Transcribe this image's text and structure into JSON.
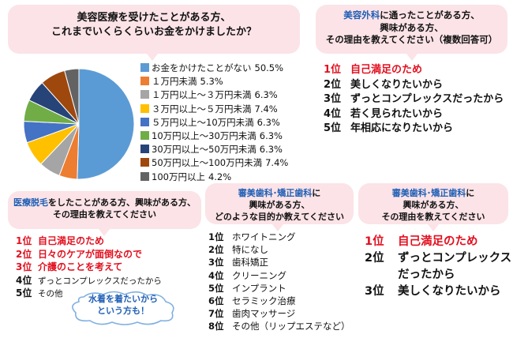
{
  "q1": {
    "line1": "美容医療を受けたことがある方、",
    "line2": "これまでいくらくらいお金をかけましたか？"
  },
  "chart_data": {
    "type": "pie",
    "title": "美容医療を受けたことがある方、これまでいくらくらいお金をかけましたか？",
    "categories": [
      "お金をかけたことがない",
      "１万円未満",
      "１万円以上～３万円未満",
      "３万円以上～５万円未満",
      "５万円以上～10万円未満",
      "10万円以上～30万円未満",
      "30万円以上～50万円未満",
      "50万円以上～100万円未満",
      "100万円以上"
    ],
    "values": [
      50.5,
      5.3,
      6.3,
      7.4,
      6.3,
      6.3,
      6.3,
      7.4,
      4.2
    ],
    "value_labels": [
      "50.5%",
      "5.3%",
      "6.3%",
      "7.4%",
      "6.3%",
      "6.3%",
      "6.3%",
      "7.4%",
      "4.2%"
    ],
    "colors": [
      "#5b9bd5",
      "#ed7d31",
      "#a5a5a5",
      "#ffc000",
      "#4472c4",
      "#70ad47",
      "#264478",
      "#9e480e",
      "#636363"
    ],
    "legend_position": "right"
  },
  "q2": {
    "highlight": "美容外科",
    "line1_rest": "に通ったことがある方、",
    "line2": "興味がある方、",
    "line3": "その理由を教えてください（複数回答可）",
    "ranks": [
      {
        "n": "1位",
        "t": "自己満足のため"
      },
      {
        "n": "2位",
        "t": "美しくなりたいから"
      },
      {
        "n": "3位",
        "t": "ずっとコンプレックスだったから"
      },
      {
        "n": "4位",
        "t": "若く見られたいから"
      },
      {
        "n": "5位",
        "t": "年相応になりたいから"
      }
    ]
  },
  "q3": {
    "highlight": "医療脱毛",
    "line1_rest": "をしたことがある方、興味がある方、",
    "line2": "その理由を教えてください",
    "ranks": [
      {
        "n": "1位",
        "t": "自己満足のため"
      },
      {
        "n": "2位",
        "t": "日々のケアが面倒なので"
      },
      {
        "n": "3位",
        "t": "介護のことを考えて"
      },
      {
        "n": "4位",
        "t": "ずっとコンプレックスだったから"
      },
      {
        "n": "5位",
        "t": "その他"
      }
    ],
    "note_line1": "水着を着たいから",
    "note_line2": "という方も！"
  },
  "q4": {
    "highlight": "審美歯科･矯正歯科",
    "line1_rest": "に",
    "line2": "興味がある方、",
    "line3": "どのような目的か教えてください",
    "ranks": [
      {
        "n": "1位",
        "t": "ホワイトニング"
      },
      {
        "n": "2位",
        "t": "特になし"
      },
      {
        "n": "3位",
        "t": "歯科矯正"
      },
      {
        "n": "4位",
        "t": "クリーニング"
      },
      {
        "n": "5位",
        "t": "インプラント"
      },
      {
        "n": "6位",
        "t": "セラミック治療"
      },
      {
        "n": "7位",
        "t": "歯肉マッサージ"
      },
      {
        "n": "8位",
        "t": "その他（リップエステなど）"
      }
    ]
  },
  "q5": {
    "highlight": "審美歯科･矯正歯科",
    "line1_rest": "に",
    "line2": "興味がある方、",
    "line3": "その理由を教えてください",
    "ranks": [
      {
        "n": "1位",
        "t": "自己満足のため"
      },
      {
        "n": "2位",
        "t": "ずっとコンプレックス"
      },
      {
        "n": "",
        "t": "だったから"
      },
      {
        "n": "3位",
        "t": "美しくなりたいから"
      }
    ]
  }
}
